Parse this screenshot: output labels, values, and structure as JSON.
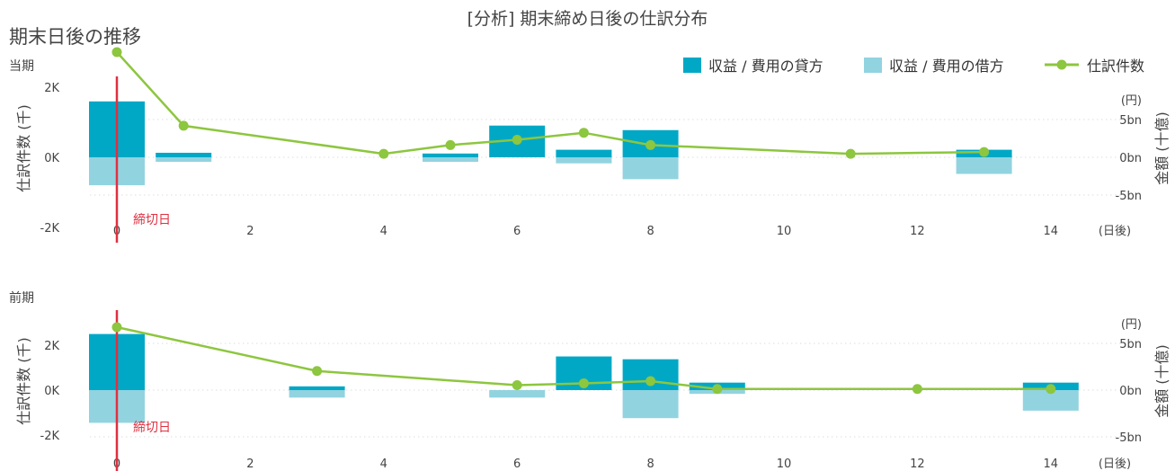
{
  "title": "[分析] 期末締め日後の仕訳分布",
  "section_title": "期末日後の推移",
  "legend": {
    "credit": "収益 / 費用の貸方",
    "debit": "収益 / 費用の借方",
    "count": "仕訳件数"
  },
  "colors": {
    "credit": "#00a8c6",
    "debit": "#92d3e0",
    "count_line": "#8dc63f",
    "cutoff": "#e03040",
    "axis_text": "#444444",
    "grid": "#cccccc"
  },
  "chart_data": [
    {
      "type": "bar",
      "panel_label": "当期",
      "x_unit": "(日後)",
      "left_axis_title": "仕訳件数 (千)",
      "right_axis_title": "金額 (十億)",
      "right_unit": "(円)",
      "cutoff_label": "締切日",
      "cutoff_x": 0,
      "xlim": [
        -0.4,
        15.3
      ],
      "xticks": [
        0,
        2,
        4,
        6,
        8,
        10,
        12,
        14
      ],
      "left_ylim": [
        -2.4,
        3.2
      ],
      "left_ticks": [
        {
          "v": 2,
          "label": "2K"
        },
        {
          "v": 0,
          "label": "0K"
        },
        {
          "v": -2,
          "label": "-2K"
        }
      ],
      "right_ylim": [
        -6,
        8
      ],
      "right_ticks": [
        {
          "v": 5,
          "label": "5bn"
        },
        {
          "v": 0,
          "label": "0bn"
        },
        {
          "v": -5,
          "label": "-5bn"
        }
      ],
      "series": [
        {
          "name": "収益 / 費用の貸方",
          "kind": "bar",
          "x": [
            0,
            1,
            5,
            6,
            7,
            8,
            13
          ],
          "values": [
            7.4,
            0.6,
            0.5,
            4.2,
            1.0,
            3.6,
            1.0
          ]
        },
        {
          "name": "収益 / 費用の借方",
          "kind": "bar",
          "x": [
            0,
            1,
            5,
            6,
            7,
            8,
            13
          ],
          "values": [
            -3.7,
            -0.6,
            -0.6,
            0,
            -0.8,
            -2.9,
            -2.2
          ]
        },
        {
          "name": "仕訳件数",
          "kind": "line",
          "x": [
            0,
            1,
            4,
            5,
            6,
            7,
            8,
            11,
            13
          ],
          "values": [
            3.0,
            0.9,
            0.1,
            0.35,
            0.5,
            0.7,
            0.35,
            0.1,
            0.15
          ]
        }
      ]
    },
    {
      "type": "bar",
      "panel_label": "前期",
      "x_unit": "(日後)",
      "left_axis_title": "仕訳件数 (千)",
      "right_axis_title": "金額 (十億)",
      "right_unit": "(円)",
      "cutoff_label": "締切日",
      "cutoff_x": 0,
      "xlim": [
        -0.4,
        15.3
      ],
      "xticks": [
        0,
        2,
        4,
        6,
        8,
        10,
        12,
        14
      ],
      "left_ylim": [
        -2.4,
        3.2
      ],
      "left_ticks": [
        {
          "v": 2,
          "label": "2K"
        },
        {
          "v": 0,
          "label": "0K"
        },
        {
          "v": -2,
          "label": "-2K"
        }
      ],
      "right_ylim": [
        -6,
        8
      ],
      "right_ticks": [
        {
          "v": 5,
          "label": "5bn"
        },
        {
          "v": 0,
          "label": "0bn"
        },
        {
          "v": -5,
          "label": "-5bn"
        }
      ],
      "series": [
        {
          "name": "収益 / 費用の貸方",
          "kind": "bar",
          "x": [
            0,
            3,
            6,
            7,
            8,
            9,
            14
          ],
          "values": [
            6.0,
            0.4,
            0,
            3.6,
            3.3,
            0.8,
            0.8
          ]
        },
        {
          "name": "収益 / 費用の借方",
          "kind": "bar",
          "x": [
            0,
            3,
            6,
            7,
            8,
            9,
            14
          ],
          "values": [
            -3.5,
            -0.8,
            -0.8,
            0,
            -3.0,
            -0.4,
            -2.2
          ]
        },
        {
          "name": "仕訳件数",
          "kind": "line",
          "x": [
            0,
            3,
            6,
            7,
            8,
            9,
            12,
            14
          ],
          "values": [
            2.8,
            0.85,
            0.22,
            0.3,
            0.4,
            0.05,
            0.05,
            0.05
          ]
        }
      ]
    }
  ]
}
